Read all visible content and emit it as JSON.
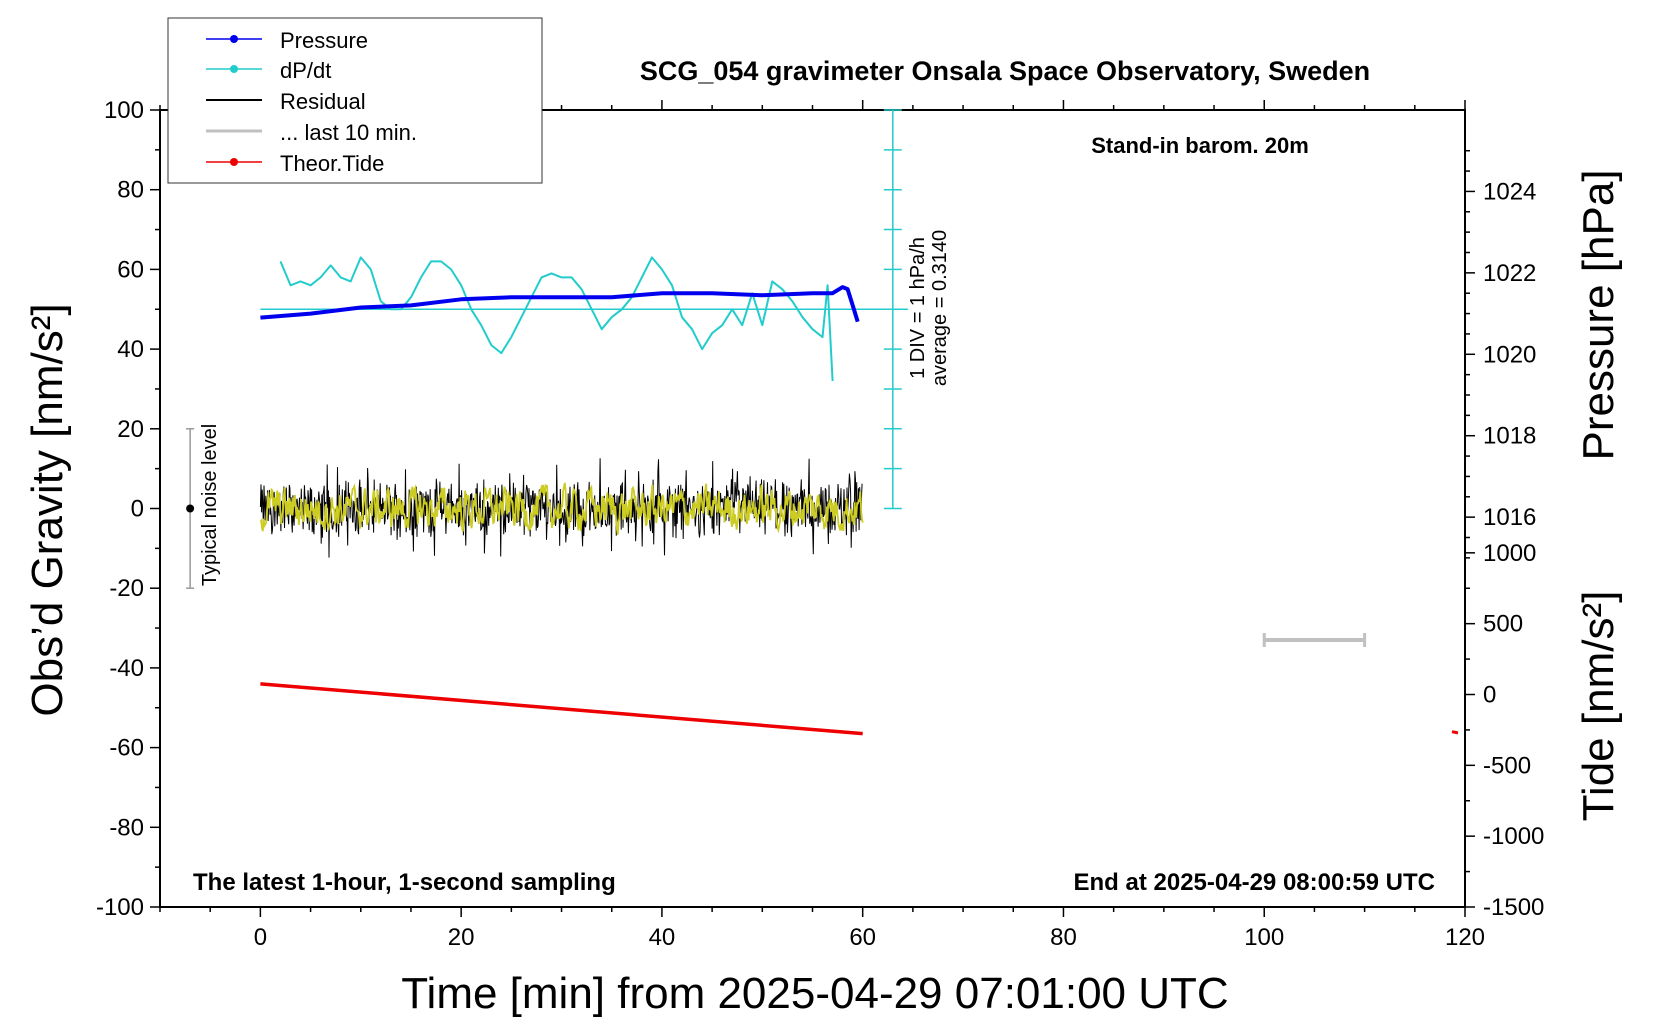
{
  "chart_data": {
    "type": "line",
    "title": "SCG_054 gravimeter Onsala Space Observatory, Sweden",
    "xlabel": "Time [min] from 2025-04-29 07:01:00 UTC",
    "ylabel_left": "Obs’d Gravity [nm/s²]",
    "ylabel_right_top": "Pressure [hPa]",
    "ylabel_right_bottom": "Tide [nm/s²]",
    "xlim": [
      -10,
      120
    ],
    "ylim": [
      -100,
      100
    ],
    "pressure_axis_range": [
      1012,
      1026
    ],
    "tide_axis_range": [
      -1500,
      1500
    ],
    "x_ticks": [
      "0",
      "20",
      "40",
      "60",
      "80",
      "100",
      "120"
    ],
    "y_ticks": [
      "100",
      "80",
      "60",
      "40",
      "20",
      "0",
      "-20",
      "-40",
      "-60",
      "-80",
      "-100"
    ],
    "pressure_ticks": [
      "1016",
      "1018",
      "1020",
      "1022",
      "1024"
    ],
    "tide_ticks": [
      "1000",
      "500",
      "0",
      "-500",
      "-1000",
      "-1500"
    ],
    "grid": false,
    "legend_position": "top-left",
    "legend": {
      "pressure": "Pressure",
      "dpdt": "dP/dt",
      "residual": "Residual",
      "last10": "... last 10 min.",
      "tide": "Theor.Tide"
    },
    "annotations": {
      "barometer": "Stand-in barom. 20m",
      "sampling": "The latest 1-hour, 1-second sampling",
      "end_time": "End at 2025-04-29 08:00:59 UTC",
      "noise": "Typical noise level",
      "div_line1": "1 DIV = 1 hPa/h",
      "div_line2": "average = 0.3140"
    },
    "colors": {
      "pressure": "#0000ee",
      "dpdt": "#22cccc",
      "residual": "#000000",
      "last10": "#c0c0c0",
      "tide": "#ee0000",
      "residual_smooth": "#cccc22"
    },
    "series": [
      {
        "name": "Pressure",
        "unit": "hPa",
        "x": [
          0,
          5,
          10,
          15,
          20,
          25,
          30,
          35,
          40,
          45,
          50,
          55,
          57,
          58,
          58.5,
          59,
          59.5
        ],
        "values": [
          1020.9,
          1021.0,
          1021.15,
          1021.2,
          1021.35,
          1021.4,
          1021.4,
          1021.4,
          1021.5,
          1021.5,
          1021.45,
          1021.5,
          1021.5,
          1021.65,
          1021.6,
          1021.2,
          1020.8
        ]
      },
      {
        "name": "dP/dt",
        "unit": "nm/s² (display, baseline 50)",
        "x": [
          2,
          3,
          4,
          5,
          6,
          7,
          8,
          9,
          10,
          11,
          12,
          13,
          14,
          15,
          16,
          17,
          18,
          19,
          20,
          21,
          22,
          23,
          24,
          25,
          26,
          27,
          28,
          29,
          30,
          31,
          32,
          33,
          34,
          35,
          36,
          37,
          38,
          39,
          40,
          41,
          42,
          43,
          44,
          45,
          46,
          47,
          48,
          49,
          50,
          51,
          52,
          53,
          54,
          55,
          56,
          56.5,
          57
        ],
        "values": [
          62,
          56,
          57,
          56,
          58,
          61,
          58,
          57,
          63,
          60,
          52,
          50,
          50,
          53,
          58,
          62,
          62,
          60,
          56,
          50,
          46,
          41,
          39,
          43,
          48,
          53,
          58,
          59,
          58,
          58,
          55,
          50,
          45,
          48,
          50,
          53,
          58,
          63,
          60,
          56,
          48,
          45,
          40,
          44,
          46,
          50,
          46,
          54,
          46,
          57,
          55,
          52,
          48,
          45,
          43,
          56,
          32
        ]
      },
      {
        "name": "Residual",
        "unit": "nm/s²",
        "x_range": [
          0,
          60
        ],
        "envelope": [
          -10,
          10
        ]
      },
      {
        "name": "Theor.Tide",
        "unit": "nm/s²",
        "x": [
          0,
          60,
          118.7,
          119.3
        ],
        "values": [
          -44,
          -56.5,
          -56,
          -56.3
        ]
      },
      {
        "name": "... last 10 min.",
        "x": [
          100,
          110
        ],
        "values": [
          -33,
          -33
        ]
      }
    ]
  }
}
